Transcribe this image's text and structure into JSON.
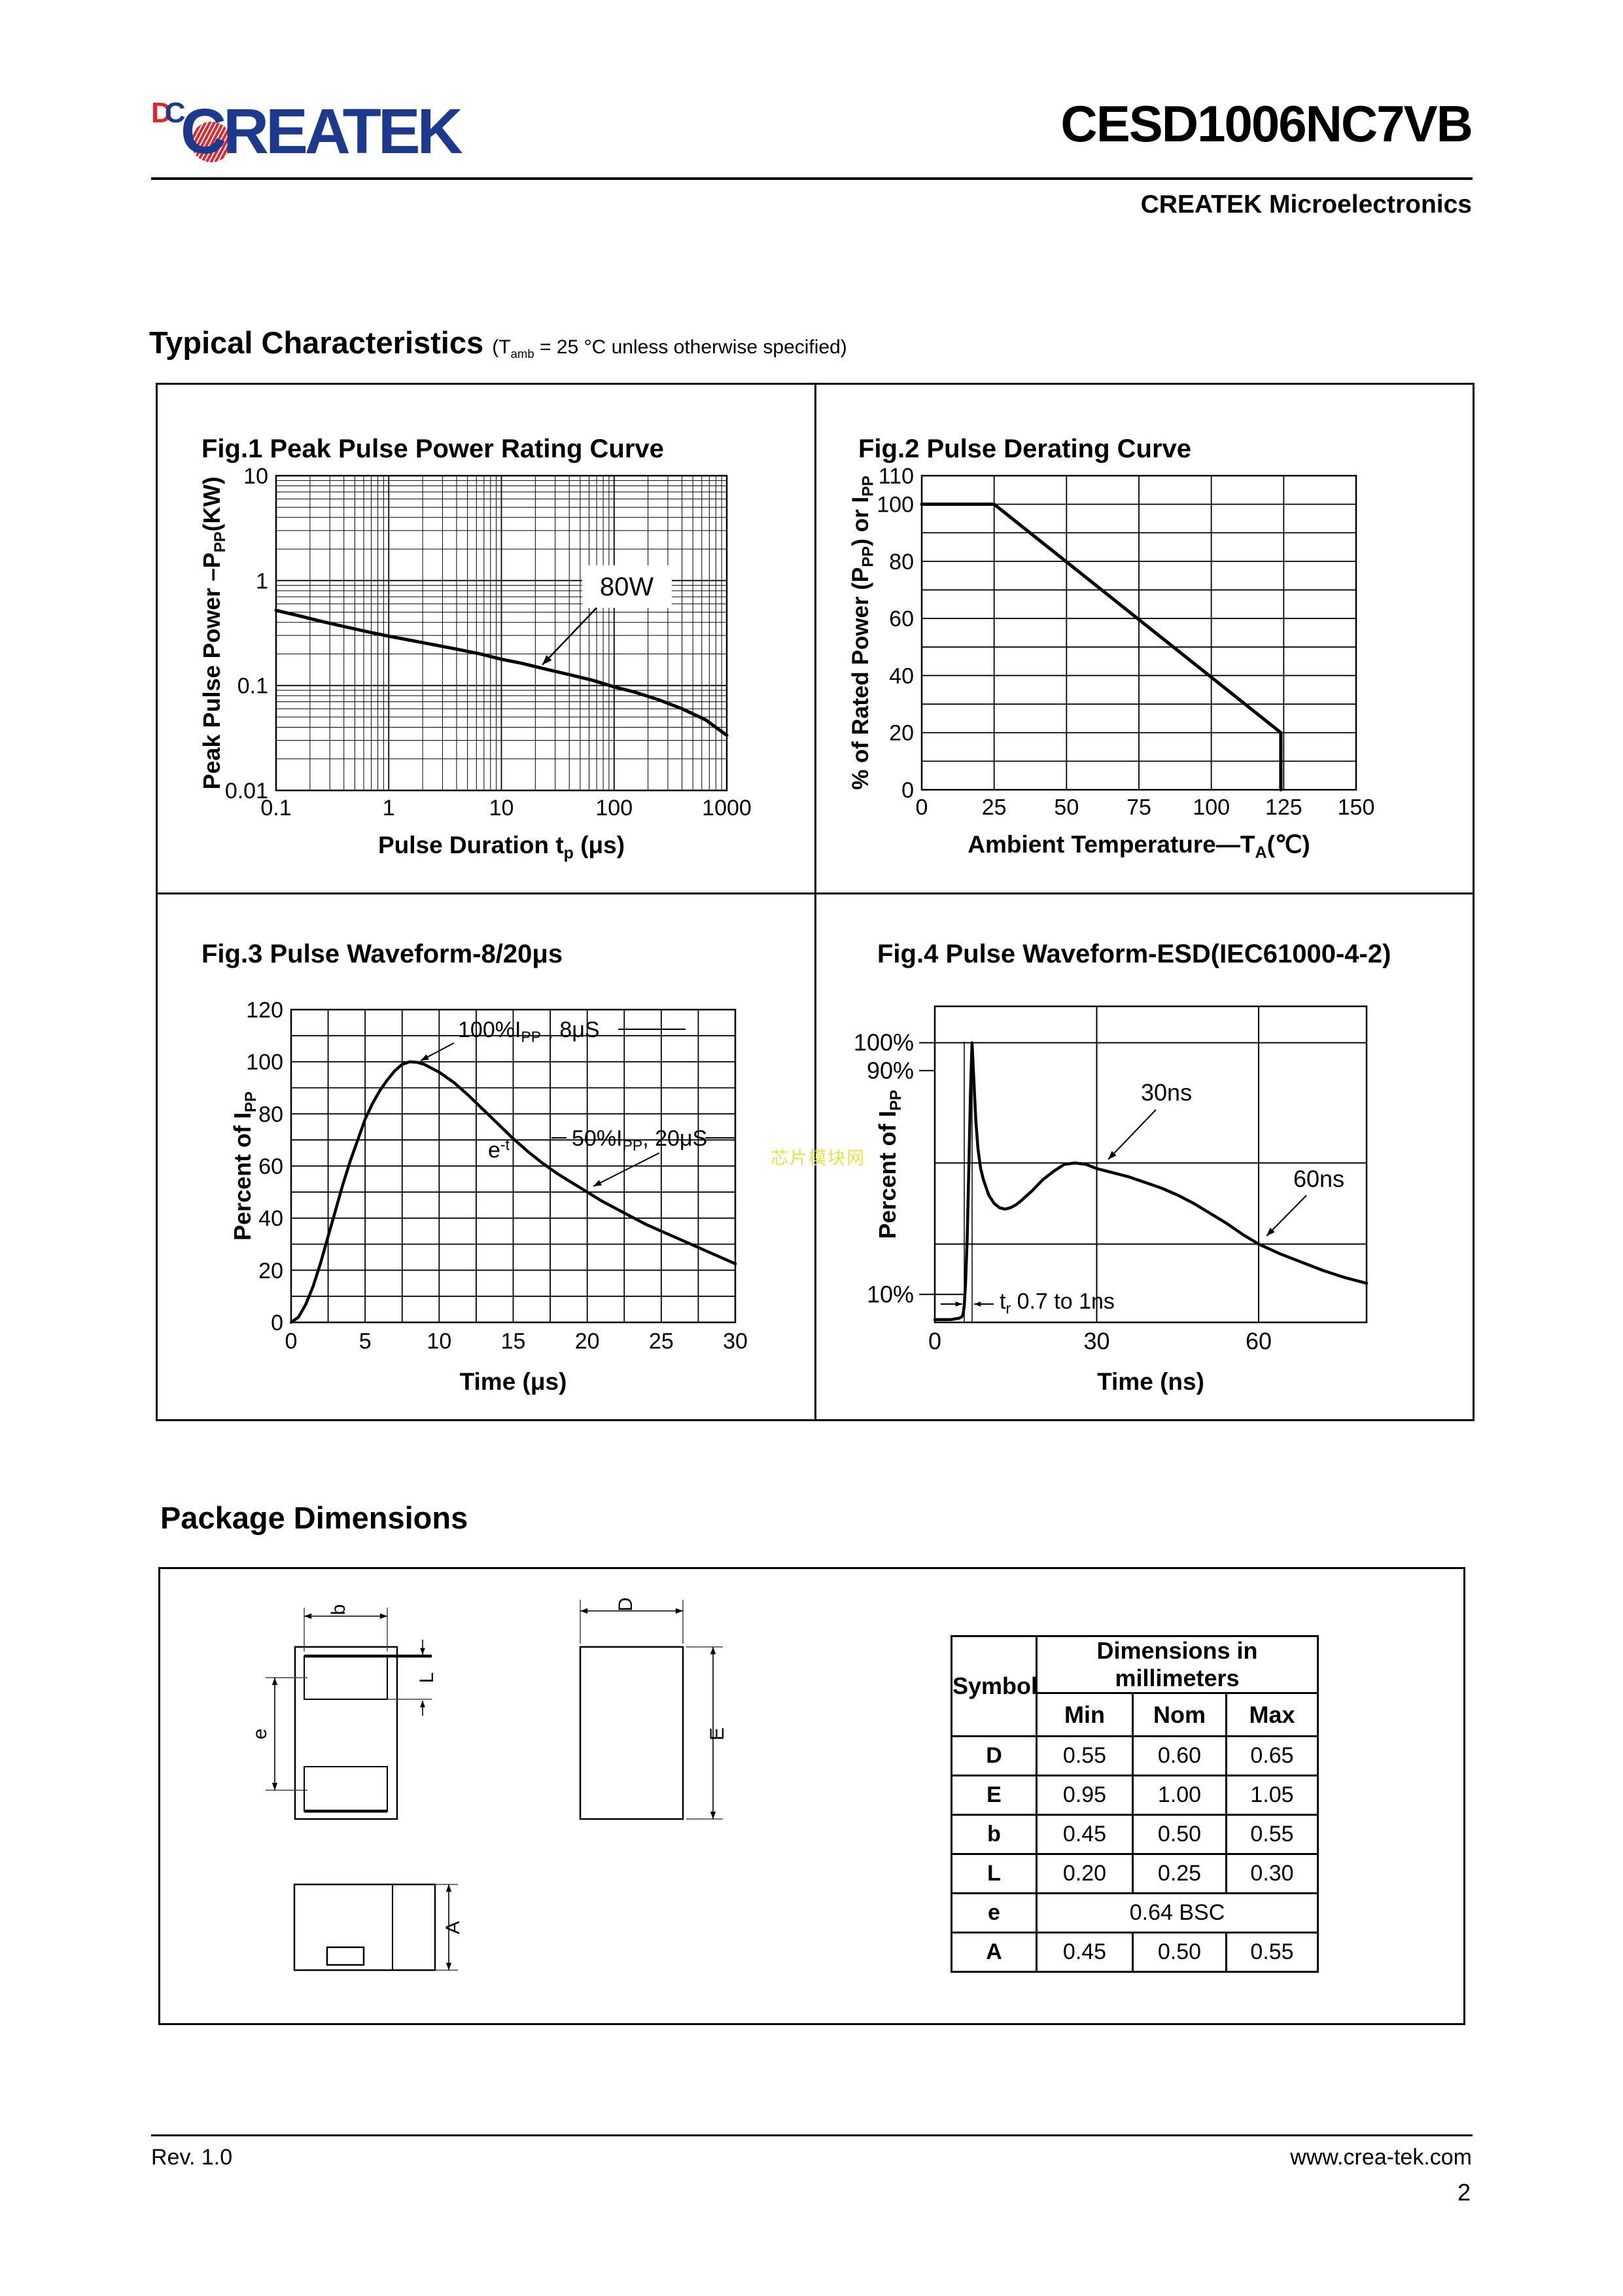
{
  "header": {
    "logo_mark_d": "D",
    "logo_mark_c": "C",
    "logo_text": "CREATEK",
    "part_number": "CESD1006NC7VB",
    "company": "CREATEK Microelectronics",
    "brand_blue": "#1b3a8f",
    "brand_red": "#e2242b"
  },
  "section_typical": {
    "title": "Typical Characteristics",
    "subtitle": [
      {
        "t": "(T"
      },
      {
        "t": "amb",
        "s": "sub"
      },
      {
        "t": " = 25 °C unless otherwise specified)"
      }
    ]
  },
  "section_package": {
    "title": "Package Dimensions"
  },
  "watermark": "芯片模块网",
  "chart_data": [
    {
      "type": "line",
      "id": "fig1",
      "title": "Fig.1 Peak Pulse Power Rating Curve",
      "xlabel": [
        {
          "t": "Pulse Duration t"
        },
        {
          "t": "p",
          "s": "sub"
        },
        {
          "t": " (μs)"
        }
      ],
      "ylabel": [
        {
          "t": "Peak Pulse Power –P"
        },
        {
          "t": "PP",
          "s": "sub"
        },
        {
          "t": "(KW)"
        }
      ],
      "xscale": "log",
      "yscale": "log",
      "xlim": [
        0.1,
        1000
      ],
      "ylim": [
        0.01,
        10
      ],
      "xtick_labels": [
        "0.1",
        "1",
        "10",
        "100",
        "1000"
      ],
      "ytick_labels": [
        "10",
        "1",
        "0.1",
        "0.01"
      ],
      "grid": "log-minor",
      "series": [
        {
          "name": "peak-pulse-power",
          "x": [
            0.1,
            0.15,
            0.25,
            0.4,
            0.65,
            1,
            1.5,
            2.5,
            4,
            6.5,
            10,
            15,
            25,
            40,
            65,
            100,
            150,
            250,
            400,
            650,
            1000
          ],
          "y": [
            0.52,
            0.47,
            0.41,
            0.365,
            0.325,
            0.295,
            0.272,
            0.245,
            0.222,
            0.2,
            0.178,
            0.163,
            0.143,
            0.127,
            0.112,
            0.097,
            0.087,
            0.073,
            0.06,
            0.047,
            0.0335
          ]
        }
      ],
      "annotations": [
        {
          "id": "power",
          "text": [
            {
              "t": "80W"
            }
          ]
        }
      ]
    },
    {
      "type": "line",
      "id": "fig2",
      "title": "Fig.2 Pulse Derating Curve",
      "xlabel": [
        {
          "t": "Ambient Temperature—T"
        },
        {
          "t": "A",
          "s": "sub"
        },
        {
          "t": "(℃)"
        }
      ],
      "ylabel": [
        {
          "t": "% of Rated Power (P"
        },
        {
          "t": "PP",
          "s": "sub"
        },
        {
          "t": ") or I"
        },
        {
          "t": "PP",
          "s": "sub"
        }
      ],
      "xlim": [
        0,
        150
      ],
      "ylim": [
        0,
        110
      ],
      "xticks": [
        0,
        25,
        50,
        75,
        100,
        125,
        150
      ],
      "yticks": [
        0,
        20,
        40,
        60,
        80,
        100,
        110
      ],
      "grid_step": {
        "x": 25,
        "y": 10
      },
      "series": [
        {
          "name": "derating",
          "x": [
            0,
            25,
            124,
            124
          ],
          "y": [
            100,
            100,
            20,
            0
          ]
        }
      ]
    },
    {
      "type": "line",
      "id": "fig3",
      "title": "Fig.3 Pulse Waveform-8/20μs",
      "xlabel": [
        {
          "t": "Time (μs)"
        }
      ],
      "ylabel": [
        {
          "t": "Percent of I"
        },
        {
          "t": "PP",
          "s": "sub"
        }
      ],
      "xlim": [
        0,
        30
      ],
      "ylim": [
        0,
        120
      ],
      "xticks": [
        0,
        5,
        10,
        15,
        20,
        25,
        30
      ],
      "yticks": [
        0,
        20,
        40,
        60,
        80,
        100,
        120
      ],
      "grid_step": {
        "x": 2.5,
        "y": 10
      },
      "series": [
        {
          "name": "pulse-waveform-8-20us",
          "x": [
            0,
            0.5,
            1,
            1.5,
            2,
            2.5,
            3,
            3.5,
            4,
            4.5,
            5,
            5.5,
            6,
            6.5,
            7,
            7.5,
            8,
            8.5,
            9,
            10,
            11,
            12,
            13,
            14,
            15,
            16,
            17,
            18,
            19,
            20,
            21,
            22,
            23,
            24,
            25,
            26,
            27,
            28,
            29,
            30
          ],
          "y": [
            0,
            2,
            7,
            14,
            23,
            33,
            43,
            53,
            62,
            70,
            78,
            84,
            89,
            93,
            96.5,
            99,
            100,
            99.8,
            99,
            96,
            92,
            87,
            81.5,
            76,
            70.5,
            65.5,
            61,
            57,
            53.5,
            50,
            46.5,
            43.5,
            40.5,
            37.5,
            35,
            32.5,
            30,
            27.5,
            25,
            22.5
          ]
        }
      ],
      "annotations": [
        {
          "id": "peak",
          "text": [
            {
              "t": "100%I"
            },
            {
              "t": "PP",
              "s": "sub"
            },
            {
              "t": " , 8μS"
            }
          ]
        },
        {
          "id": "exp",
          "text": [
            {
              "t": "e"
            },
            {
              "t": "-t",
              "s": "sup"
            }
          ]
        },
        {
          "id": "half",
          "text": [
            {
              "t": "50%I"
            },
            {
              "t": "PP",
              "s": "sub"
            },
            {
              "t": ", 20μS"
            }
          ]
        }
      ]
    },
    {
      "type": "line",
      "id": "fig4",
      "title": "Fig.4 Pulse Waveform-ESD(IEC61000-4-2)",
      "xlabel": [
        {
          "t": "Time (ns)"
        }
      ],
      "ylabel": [
        {
          "t": "Percent of I"
        },
        {
          "t": "PP",
          "s": "sub"
        }
      ],
      "xlim": [
        0,
        80
      ],
      "ylim": [
        0,
        113
      ],
      "xtick_labels": [
        "0",
        "30",
        "60"
      ],
      "xtick_values": [
        0,
        30,
        60
      ],
      "ytick_defs": [
        {
          "v": 100,
          "label": "100%"
        },
        {
          "v": 90,
          "label": "90%"
        },
        {
          "v": 10,
          "label": "10%"
        }
      ],
      "hgrid": [
        100,
        57,
        28
      ],
      "vgrid": [
        30,
        60
      ],
      "series": [
        {
          "name": "esd-waveform",
          "x": [
            0,
            3,
            4.5,
            5,
            5.25,
            5.45,
            5.7,
            6,
            6.3,
            6.6,
            6.9,
            7.2,
            7.6,
            8,
            8.5,
            9,
            10,
            11,
            12,
            13,
            14,
            15,
            16,
            18,
            20,
            22,
            24,
            26,
            28,
            30,
            33,
            36,
            39,
            42,
            45,
            48,
            51,
            54,
            57,
            60,
            64,
            68,
            72,
            76,
            80
          ],
          "y": [
            1,
            1,
            1.5,
            2,
            3,
            6,
            14,
            30,
            55,
            82,
            100,
            88,
            72,
            62,
            55,
            51,
            45.5,
            42.5,
            41,
            40.5,
            41,
            42,
            43.5,
            47,
            51,
            54,
            56.5,
            57,
            56.5,
            55,
            53.5,
            52,
            50,
            48,
            45.5,
            42.5,
            39,
            35.5,
            31.5,
            28,
            24.5,
            21.5,
            18.5,
            16,
            14
          ]
        }
      ],
      "annotations": [
        {
          "id": "t30",
          "text": [
            {
              "t": "30ns"
            }
          ]
        },
        {
          "id": "t60",
          "text": [
            {
              "t": "60ns"
            }
          ]
        },
        {
          "id": "tr",
          "text": [
            {
              "t": "t"
            },
            {
              "t": "r",
              "s": "sub"
            },
            {
              "t": " 0.7 to 1ns"
            }
          ]
        }
      ]
    }
  ],
  "package": {
    "dim_labels": {
      "b": "b",
      "L": "L",
      "e": "e",
      "D": "D",
      "E": "E",
      "A": "A"
    },
    "table": {
      "corner_header": "Symbol",
      "span_header": "Dimensions in millimeters",
      "sub_headers": [
        "Min",
        "Nom",
        "Max"
      ],
      "rows": [
        {
          "sym": "D",
          "vals": [
            "0.55",
            "0.60",
            "0.65"
          ]
        },
        {
          "sym": "E",
          "vals": [
            "0.95",
            "1.00",
            "1.05"
          ]
        },
        {
          "sym": "b",
          "vals": [
            "0.45",
            "0.50",
            "0.55"
          ]
        },
        {
          "sym": "L",
          "vals": [
            "0.20",
            "0.25",
            "0.30"
          ]
        },
        {
          "sym": "e",
          "vals": [
            "0.64 BSC"
          ],
          "span": 3
        },
        {
          "sym": "A",
          "vals": [
            "0.45",
            "0.50",
            "0.55"
          ]
        }
      ]
    }
  },
  "footer": {
    "revision": "Rev. 1.0",
    "website": "www.crea-tek.com",
    "page_number": "2"
  }
}
